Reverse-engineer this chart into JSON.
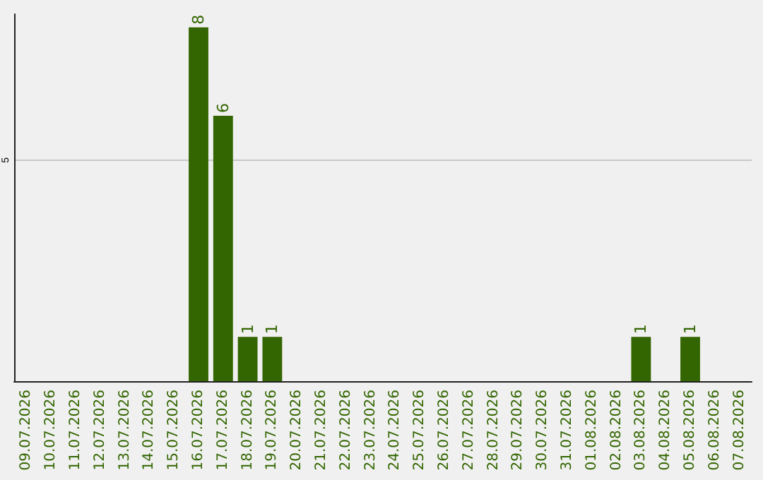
{
  "chart_data": {
    "type": "bar",
    "categories": [
      "09.07.2026",
      "10.07.2026",
      "11.07.2026",
      "12.07.2026",
      "13.07.2026",
      "14.07.2026",
      "15.07.2026",
      "16.07.2026",
      "17.07.2026",
      "18.07.2026",
      "19.07.2026",
      "20.07.2026",
      "21.07.2026",
      "22.07.2026",
      "23.07.2026",
      "24.07.2026",
      "25.07.2026",
      "26.07.2026",
      "27.07.2026",
      "28.07.2026",
      "29.07.2026",
      "30.07.2026",
      "31.07.2026",
      "01.08.2026",
      "02.08.2026",
      "03.08.2026",
      "04.08.2026",
      "05.08.2026",
      "06.08.2026",
      "07.08.2026"
    ],
    "values": [
      0,
      0,
      0,
      0,
      0,
      0,
      0,
      8,
      6,
      1,
      1,
      0,
      0,
      0,
      0,
      0,
      0,
      0,
      0,
      0,
      0,
      0,
      0,
      0,
      0,
      1,
      0,
      1,
      0,
      0
    ],
    "value_labels": [
      null,
      null,
      null,
      null,
      null,
      null,
      null,
      "8",
      "6",
      "1",
      "1",
      null,
      null,
      null,
      null,
      null,
      null,
      null,
      null,
      null,
      null,
      null,
      null,
      null,
      null,
      "1",
      null,
      "1",
      null,
      null
    ],
    "color": "#336600",
    "ylim": [
      0,
      8.3
    ],
    "yticks": [
      5
    ],
    "grid": "y"
  }
}
